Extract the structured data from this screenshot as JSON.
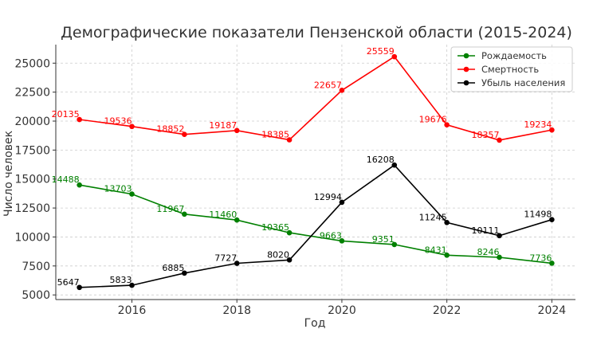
{
  "chart_data": {
    "type": "line",
    "title": "Демографические показатели Пензенской области (2015-2024)",
    "xlabel": "Год",
    "ylabel": "Число человек",
    "x": [
      2015,
      2016,
      2017,
      2018,
      2019,
      2020,
      2021,
      2022,
      2023,
      2024
    ],
    "xticks": [
      "2016",
      "2018",
      "2020",
      "2022",
      "2024"
    ],
    "yticks": [
      "5000",
      "7500",
      "10000",
      "12500",
      "15000",
      "17500",
      "20000",
      "22500",
      "25000"
    ],
    "xlim": [
      2014.55,
      2024.45
    ],
    "ylim": [
      4600,
      26600
    ],
    "grid": true,
    "legend_position": "top-right",
    "series": [
      {
        "name": "Рождаемость",
        "color": "#008000",
        "values": [
          14488,
          13703,
          11967,
          11460,
          10365,
          9663,
          9351,
          8431,
          8246,
          7736
        ]
      },
      {
        "name": "Смертность",
        "color": "#ff0000",
        "values": [
          20135,
          19536,
          18852,
          19187,
          18385,
          22657,
          25559,
          19676,
          18357,
          19234
        ]
      },
      {
        "name": "Убыль населения",
        "color": "#000000",
        "values": [
          5647,
          5833,
          6885,
          7727,
          8020,
          12994,
          16208,
          11245,
          10111,
          11498
        ]
      }
    ]
  }
}
